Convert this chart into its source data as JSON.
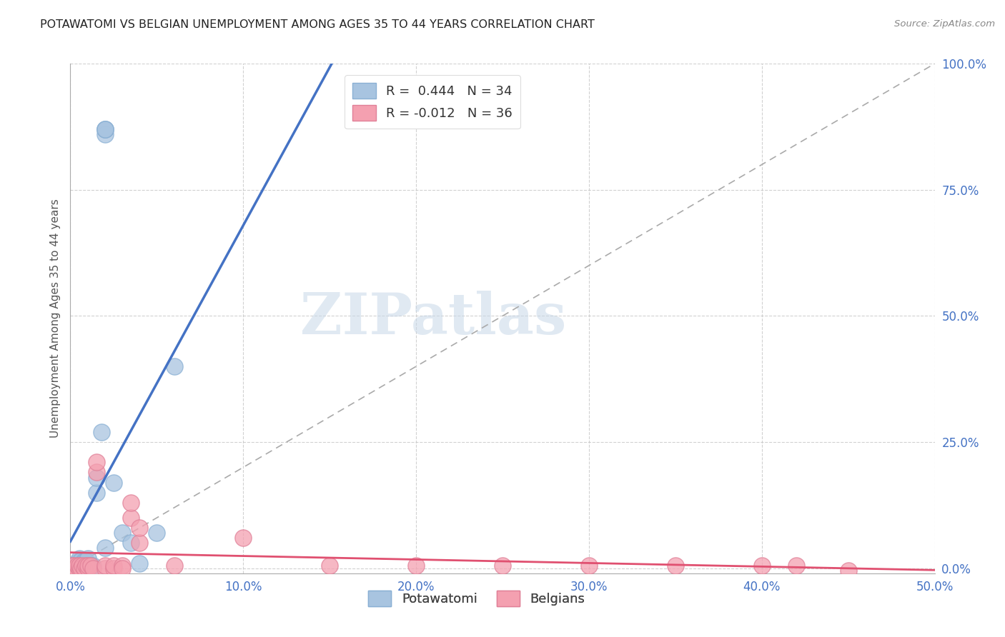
{
  "title": "POTAWATOMI VS BELGIAN UNEMPLOYMENT AMONG AGES 35 TO 44 YEARS CORRELATION CHART",
  "source": "Source: ZipAtlas.com",
  "ylabel_label": "Unemployment Among Ages 35 to 44 years",
  "xlim": [
    0.0,
    0.5
  ],
  "ylim": [
    -0.01,
    1.0
  ],
  "grid_color": "#cccccc",
  "background_color": "#ffffff",
  "watermark": "ZIPatlas",
  "watermark_color": "#c8d8e8",
  "potawatomi_R": 0.444,
  "potawatomi_N": 34,
  "belgian_R": -0.012,
  "belgian_N": 36,
  "potawatomi_color": "#a8c4e0",
  "potawatomi_line_color": "#4472c4",
  "belgian_color": "#f4a0b0",
  "belgian_line_color": "#e05070",
  "legend_label_1": "Potawatomi",
  "legend_label_2": "Belgians",
  "potawatomi_x": [
    0.001,
    0.002,
    0.003,
    0.003,
    0.004,
    0.005,
    0.005,
    0.005,
    0.006,
    0.006,
    0.007,
    0.007,
    0.008,
    0.008,
    0.009,
    0.009,
    0.01,
    0.01,
    0.012,
    0.013,
    0.015,
    0.015,
    0.018,
    0.02,
    0.025,
    0.03,
    0.035,
    0.04,
    0.05,
    0.06,
    0.02,
    0.02,
    0.02,
    0.02
  ],
  "potawatomi_y": [
    0.0,
    0.005,
    0.005,
    0.01,
    0.01,
    0.015,
    0.02,
    0.005,
    0.01,
    0.015,
    0.005,
    0.01,
    0.005,
    0.015,
    0.01,
    0.015,
    0.005,
    0.02,
    0.005,
    0.005,
    0.15,
    0.18,
    0.27,
    0.04,
    0.17,
    0.07,
    0.05,
    0.01,
    0.07,
    0.4,
    0.86,
    0.87,
    0.87,
    0.87
  ],
  "belgian_x": [
    0.001,
    0.002,
    0.003,
    0.004,
    0.005,
    0.005,
    0.006,
    0.007,
    0.008,
    0.009,
    0.01,
    0.01,
    0.012,
    0.013,
    0.015,
    0.015,
    0.02,
    0.02,
    0.025,
    0.025,
    0.03,
    0.03,
    0.035,
    0.035,
    0.04,
    0.04,
    0.06,
    0.1,
    0.15,
    0.2,
    0.25,
    0.3,
    0.35,
    0.4,
    0.42,
    0.45
  ],
  "belgian_y": [
    0.005,
    0.005,
    0.0,
    0.005,
    0.0,
    0.005,
    0.0,
    0.005,
    0.0,
    0.005,
    0.0,
    0.005,
    0.005,
    0.0,
    0.19,
    0.21,
    0.0,
    0.005,
    0.0,
    0.005,
    0.005,
    0.0,
    0.1,
    0.13,
    0.05,
    0.08,
    0.005,
    0.06,
    0.005,
    0.005,
    0.005,
    0.005,
    0.005,
    0.005,
    0.005,
    -0.005
  ]
}
